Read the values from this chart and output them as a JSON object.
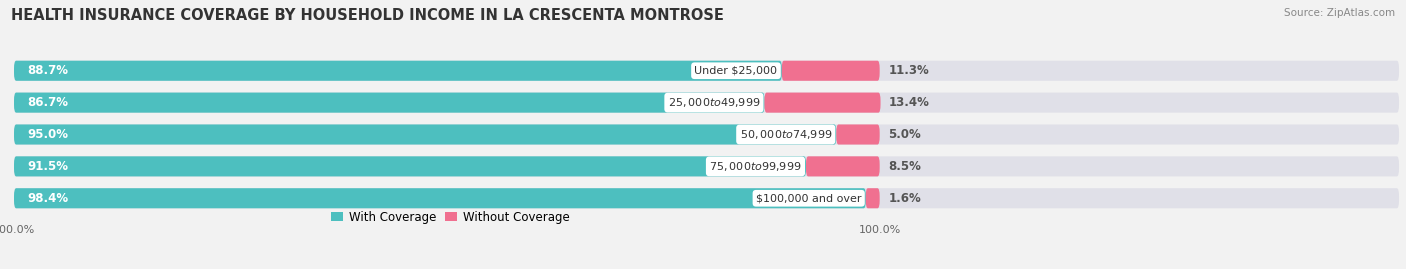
{
  "title": "HEALTH INSURANCE COVERAGE BY HOUSEHOLD INCOME IN LA CRESCENTA MONTROSE",
  "source": "Source: ZipAtlas.com",
  "categories": [
    "Under $25,000",
    "$25,000 to $49,999",
    "$50,000 to $74,999",
    "$75,000 to $99,999",
    "$100,000 and over"
  ],
  "with_coverage": [
    88.7,
    86.7,
    95.0,
    91.5,
    98.4
  ],
  "without_coverage": [
    11.3,
    13.4,
    5.0,
    8.5,
    1.6
  ],
  "color_with": "#4DBFBF",
  "color_without": "#F07090",
  "background_color": "#F2F2F2",
  "bar_bg_color": "#E0E0E8",
  "bar_height": 0.62,
  "xlim": [
    0,
    100
  ],
  "title_fontsize": 10.5,
  "label_fontsize": 8.5,
  "tick_fontsize": 8,
  "legend_fontsize": 8.5,
  "source_fontsize": 7.5
}
